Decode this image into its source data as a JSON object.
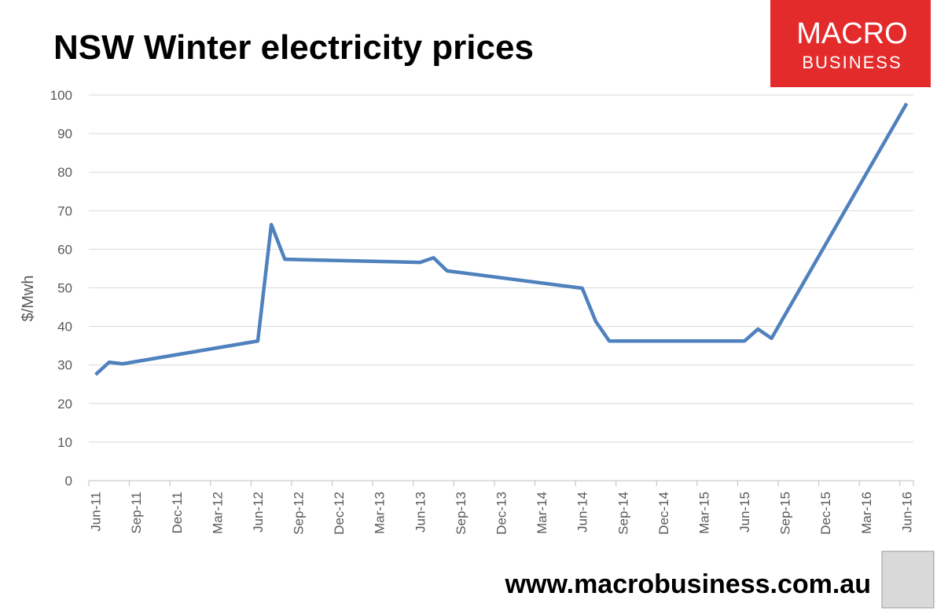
{
  "chart_data": {
    "type": "line",
    "title": "NSW Winter electricity prices",
    "logo": {
      "line1": "MACRO",
      "line2": "BUSINESS"
    },
    "footer": "www.macrobusiness.com.au",
    "y_label": "$/Mwh",
    "x": [
      "Jun-11",
      "Jul-11",
      "Aug-11",
      "Jun-12",
      "Jul-12",
      "Aug-12",
      "Jun-13",
      "Jul-13",
      "Aug-13",
      "Jun-14",
      "Jul-14",
      "Aug-14",
      "Jun-15",
      "Jul-15",
      "Aug-15",
      "Jun-16"
    ],
    "series": [
      {
        "name": "NSW",
        "color": "#4f81bd",
        "values": [
          27.5,
          30.7,
          30.3,
          36.2,
          66.4,
          57.4,
          56.6,
          57.8,
          54.4,
          49.9,
          41.3,
          36.2,
          36.2,
          39.3,
          36.9,
          97.8
        ]
      }
    ],
    "xlim": [
      "Jun-11",
      "Jun-16"
    ],
    "xticks": [
      "Jun-11",
      "Sep-11",
      "Dec-11",
      "Mar-12",
      "Jun-12",
      "Sep-12",
      "Dec-12",
      "Mar-13",
      "Jun-13",
      "Sep-13",
      "Dec-13",
      "Mar-14",
      "Jun-14",
      "Sep-14",
      "Dec-14",
      "Mar-15",
      "Jun-15",
      "Sep-15",
      "Dec-15",
      "Mar-16",
      "Jun-16"
    ],
    "ylim": [
      0,
      100
    ],
    "yticks": [
      0,
      10,
      20,
      30,
      40,
      50,
      60,
      70,
      80,
      90,
      100
    ],
    "grid": true
  }
}
